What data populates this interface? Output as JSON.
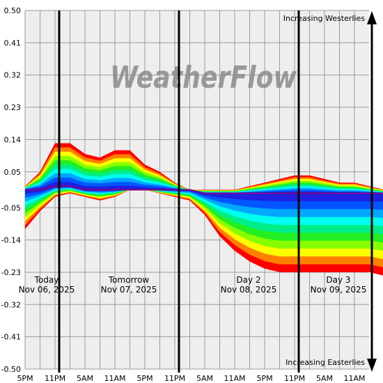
{
  "watermark": "WeatherFlow",
  "chart_data": {
    "type": "area",
    "title": "",
    "xlabel": "",
    "ylabel": "",
    "ylim": [
      -0.5,
      0.5
    ],
    "y_ticks": [
      "0.50",
      "0.41",
      "0.32",
      "0.23",
      "0.14",
      "0.05",
      "-0.05",
      "-0.14",
      "-0.23",
      "-0.32",
      "-0.41",
      "-0.50"
    ],
    "x_ticks": [
      "5PM",
      "11PM",
      "5AM",
      "11AM",
      "5PM",
      "11PM",
      "5AM",
      "11AM",
      "5PM",
      "11PM",
      "5AM",
      "11AM"
    ],
    "grid": true,
    "day_labels": [
      {
        "name": "Today",
        "date": "Nov 06, 2025"
      },
      {
        "name": "Tomorrow",
        "date": "Nov 07, 2025"
      },
      {
        "name": "Day 2",
        "date": "Nov 08, 2025"
      },
      {
        "name": "Day 3",
        "date": "Nov 09, 2025"
      }
    ],
    "direction_labels": {
      "top": "Increasing Westerlies",
      "bottom": "Increasing Easterlies"
    },
    "hours_from_start": [
      0,
      3,
      6,
      9,
      12,
      15,
      18,
      21,
      24,
      27,
      30,
      33,
      36,
      39,
      42,
      45,
      48,
      51,
      54,
      57,
      60,
      63,
      66,
      69,
      72,
      75,
      78,
      81,
      84,
      87
    ],
    "upper_envelope": [
      0.01,
      0.05,
      0.13,
      0.13,
      0.1,
      0.09,
      0.11,
      0.11,
      0.07,
      0.05,
      0.02,
      0.0,
      0.0,
      0.0,
      0.0,
      0.01,
      0.02,
      0.03,
      0.04,
      0.04,
      0.03,
      0.02,
      0.02,
      0.01,
      0.0,
      0.0,
      0.0,
      0.0,
      0.0,
      0.0
    ],
    "lower_envelope": [
      -0.11,
      -0.06,
      -0.02,
      -0.01,
      -0.02,
      -0.03,
      -0.02,
      0.0,
      0.0,
      -0.01,
      -0.02,
      -0.03,
      -0.07,
      -0.13,
      -0.17,
      -0.2,
      -0.22,
      -0.23,
      -0.23,
      -0.23,
      -0.23,
      -0.23,
      -0.23,
      -0.23,
      -0.24,
      -0.23,
      -0.21,
      -0.19,
      -0.17,
      -0.15
    ],
    "median": [
      0.0,
      0.0,
      0.01,
      0.01,
      0.0,
      0.0,
      0.0,
      0.0,
      0.0,
      0.0,
      0.0,
      0.0,
      -0.01,
      -0.01,
      -0.01,
      -0.01,
      -0.01,
      -0.01,
      -0.01,
      -0.01,
      -0.01,
      -0.01,
      -0.01,
      -0.01,
      -0.01,
      -0.01,
      -0.01,
      -0.01,
      -0.01,
      -0.01
    ],
    "band_colors": [
      "#ff0000",
      "#ff8000",
      "#ffff00",
      "#88ff00",
      "#22ee22",
      "#00ee88",
      "#00ffee",
      "#00a8ff",
      "#0055ff",
      "#2020e0"
    ],
    "median_color": "#800080",
    "day_divider_hours": [
      6,
      30,
      54
    ],
    "arrow_color": "#000000"
  }
}
